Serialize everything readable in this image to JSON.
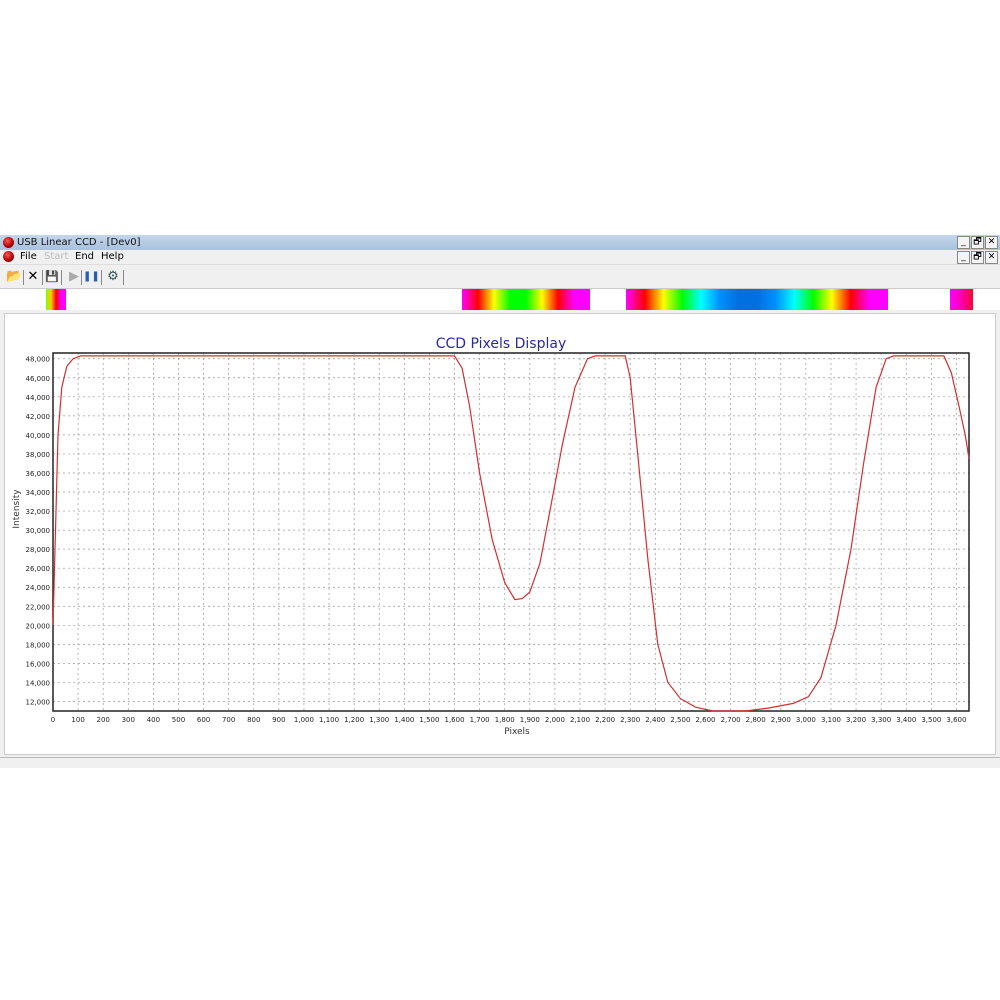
{
  "window": {
    "title": "USB Linear CCD - [Dev0]",
    "controls": [
      "_",
      "🗗",
      "✕"
    ]
  },
  "menu": [
    {
      "label": "File",
      "enabled": true
    },
    {
      "label": "Start",
      "enabled": false
    },
    {
      "label": "End",
      "enabled": true
    },
    {
      "label": "Help",
      "enabled": true
    }
  ],
  "toolbar": [
    {
      "icon": "open-folder-icon",
      "glyph": "📂"
    },
    {
      "icon": "close-icon",
      "glyph": "✕"
    },
    {
      "icon": "save-icon",
      "glyph": "💾"
    },
    {
      "icon": "play-icon",
      "glyph": "▶"
    },
    {
      "icon": "pause-icon",
      "glyph": "❚❚"
    },
    {
      "icon": "device-settings-icon",
      "glyph": "⚙"
    }
  ],
  "color_strip": [
    {
      "colors": [
        "#80ff00",
        "#ffcc00",
        "#ff0000",
        "#ff00ff",
        "#ff00ff"
      ]
    },
    {
      "colors": [
        "#ff00ff",
        "#ff0000",
        "#ffff00",
        "#00ff00",
        "#00ff00",
        "#ffff00",
        "#ff0000",
        "#ff00ff",
        "#ff00ff"
      ]
    },
    {
      "colors": [
        "#ff00ff",
        "#ff0000",
        "#ffff00",
        "#00ff00",
        "#00ffff",
        "#0090ff",
        "#0070e0",
        "#0070e0",
        "#0090ff",
        "#00ffff",
        "#00ff00",
        "#ffff00",
        "#ff0000",
        "#ff00ff",
        "#ff00ff"
      ]
    },
    {
      "colors": [
        "#ff00ff",
        "#ff00aa",
        "#ff0033"
      ]
    }
  ],
  "chart_data": {
    "type": "line",
    "title": "CCD Pixels Display",
    "xlabel": "Pixels",
    "ylabel": "Intensity",
    "xlim": [
      0,
      3650
    ],
    "ylim": [
      11000,
      48600
    ],
    "xticks": [
      0,
      100,
      200,
      300,
      400,
      500,
      600,
      700,
      800,
      900,
      1000,
      1100,
      1200,
      1300,
      1400,
      1500,
      1600,
      1700,
      1800,
      1900,
      2000,
      2100,
      2200,
      2300,
      2400,
      2500,
      2600,
      2700,
      2800,
      2900,
      3000,
      3100,
      3200,
      3300,
      3400,
      3500,
      3600
    ],
    "xtick_labels": [
      "0",
      "100",
      "200",
      "300",
      "400",
      "500",
      "600",
      "700",
      "800",
      "900",
      "1,000",
      "1,100",
      "1,200",
      "1,300",
      "1,400",
      "1,500",
      "1,600",
      "1,700",
      "1,800",
      "1,900",
      "2,000",
      "2,100",
      "2,200",
      "2,300",
      "2,400",
      "2,500",
      "2,600",
      "2,700",
      "2,800",
      "2,900",
      "3,000",
      "3,100",
      "3,200",
      "3,300",
      "3,400",
      "3,500",
      "3,600"
    ],
    "yticks": [
      12000,
      14000,
      16000,
      18000,
      20000,
      22000,
      24000,
      26000,
      28000,
      30000,
      32000,
      34000,
      36000,
      38000,
      40000,
      42000,
      44000,
      46000,
      48000
    ],
    "ytick_labels": [
      "12,000",
      "14,000",
      "16,000",
      "18,000",
      "20,000",
      "22,000",
      "24,000",
      "26,000",
      "28,000",
      "30,000",
      "32,000",
      "34,000",
      "36,000",
      "38,000",
      "40,000",
      "42,000",
      "44,000",
      "46,000",
      "48,000"
    ],
    "grid": true,
    "line_color": "#d03030",
    "series": [
      {
        "points": [
          [
            0,
            20000
          ],
          [
            10,
            30000
          ],
          [
            20,
            40000
          ],
          [
            35,
            45000
          ],
          [
            55,
            47200
          ],
          [
            80,
            48000
          ],
          [
            110,
            48300
          ],
          [
            1600,
            48300
          ],
          [
            1630,
            47000
          ],
          [
            1660,
            43000
          ],
          [
            1700,
            36000
          ],
          [
            1750,
            29000
          ],
          [
            1800,
            24500
          ],
          [
            1840,
            22700
          ],
          [
            1870,
            22800
          ],
          [
            1900,
            23500
          ],
          [
            1940,
            26500
          ],
          [
            1980,
            32000
          ],
          [
            2030,
            39000
          ],
          [
            2080,
            45000
          ],
          [
            2130,
            48000
          ],
          [
            2160,
            48300
          ],
          [
            2280,
            48300
          ],
          [
            2300,
            46000
          ],
          [
            2330,
            38000
          ],
          [
            2370,
            27000
          ],
          [
            2410,
            18000
          ],
          [
            2450,
            14000
          ],
          [
            2500,
            12300
          ],
          [
            2560,
            11400
          ],
          [
            2630,
            11000
          ],
          [
            2760,
            11000
          ],
          [
            2850,
            11300
          ],
          [
            2950,
            11800
          ],
          [
            3010,
            12500
          ],
          [
            3060,
            14500
          ],
          [
            3120,
            20000
          ],
          [
            3180,
            28000
          ],
          [
            3230,
            37000
          ],
          [
            3280,
            45000
          ],
          [
            3320,
            48000
          ],
          [
            3350,
            48300
          ],
          [
            3550,
            48300
          ],
          [
            3580,
            46500
          ],
          [
            3610,
            43000
          ],
          [
            3635,
            40000
          ],
          [
            3650,
            37500
          ]
        ]
      }
    ]
  }
}
